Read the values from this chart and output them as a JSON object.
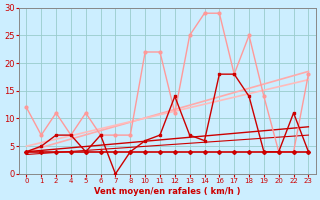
{
  "title": "",
  "xlabel": "Vent moyen/en rafales ( km/h )",
  "bg_color": "#cceeff",
  "grid_color": "#99cccc",
  "xlim": [
    -0.5,
    19.5
  ],
  "ylim": [
    0,
    30
  ],
  "yticks": [
    0,
    5,
    10,
    15,
    20,
    25,
    30
  ],
  "xtick_positions": [
    0,
    1,
    2,
    3,
    4,
    5,
    6,
    7,
    8,
    9,
    10,
    11,
    12,
    13,
    14,
    15,
    16,
    17,
    18,
    19
  ],
  "xtick_labels": [
    "0",
    "1",
    "2",
    "4",
    "5",
    "6",
    "7",
    "8",
    "10",
    "11",
    "12",
    "13",
    "14",
    "16",
    "17",
    "18",
    "19",
    "20",
    "22",
    "23"
  ],
  "series_light_jagged": {
    "y": [
      12,
      7,
      11,
      7,
      11,
      7,
      7,
      7,
      22,
      22,
      11,
      25,
      29,
      29,
      18,
      25,
      14,
      4,
      4,
      18
    ],
    "color": "#ff9999",
    "lw": 1.0,
    "marker": "o",
    "ms": 2.0
  },
  "series_dark_jagged": {
    "y": [
      4,
      5,
      7,
      7,
      4,
      7,
      0,
      4,
      6,
      7,
      14,
      7,
      6,
      18,
      18,
      14,
      4,
      4,
      11,
      4
    ],
    "color": "#cc0000",
    "lw": 1.0,
    "marker": "s",
    "ms": 2.0
  },
  "series_flat": {
    "y": [
      4,
      4,
      4,
      4,
      4,
      4,
      4,
      4,
      4,
      4,
      4,
      4,
      4,
      4,
      4,
      4,
      4,
      4,
      4,
      4
    ],
    "color": "#cc0000",
    "lw": 1.2,
    "marker": "D",
    "ms": 2.0
  },
  "regression_lines": [
    {
      "x": [
        0,
        19
      ],
      "y": [
        4.0,
        18.5
      ],
      "color": "#ffaaaa",
      "lw": 1.2
    },
    {
      "x": [
        0,
        19
      ],
      "y": [
        5.0,
        17.0
      ],
      "color": "#ffbbbb",
      "lw": 1.2
    },
    {
      "x": [
        0,
        19
      ],
      "y": [
        4.0,
        8.5
      ],
      "color": "#cc0000",
      "lw": 1.0
    },
    {
      "x": [
        0,
        19
      ],
      "y": [
        3.5,
        7.0
      ],
      "color": "#cc0000",
      "lw": 0.8
    }
  ]
}
